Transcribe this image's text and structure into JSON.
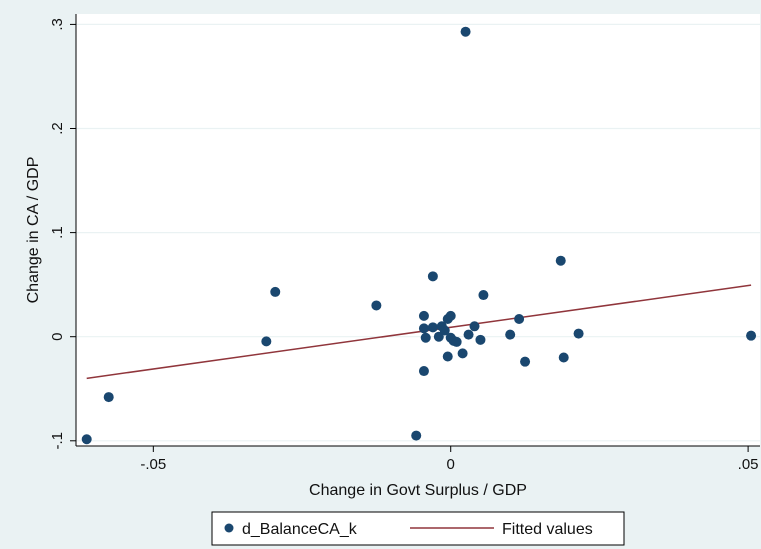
{
  "chart_data": {
    "type": "scatter",
    "xlabel": "Change in Govt Surplus / GDP",
    "ylabel": "Change in CA / GDP",
    "xlim": [
      -0.063,
      0.052
    ],
    "ylim": [
      -0.105,
      0.31
    ],
    "x_ticks": [
      {
        "value": -0.05,
        "label": "-.05"
      },
      {
        "value": 0,
        "label": "0"
      },
      {
        "value": 0.05,
        "label": ".05"
      }
    ],
    "y_ticks": [
      {
        "value": -0.1,
        "label": "-.1"
      },
      {
        "value": 0,
        "label": "0"
      },
      {
        "value": 0.1,
        "label": ".1"
      },
      {
        "value": 0.2,
        "label": ".2"
      },
      {
        "value": 0.3,
        "label": ".3"
      }
    ],
    "grid": true,
    "legend": "bottom",
    "series": [
      {
        "name": "d_BalanceCA_k",
        "type": "scatter",
        "color": "#1a476f",
        "points": [
          {
            "x": -0.0612,
            "y": -0.0985
          },
          {
            "x": -0.0575,
            "y": -0.058
          },
          {
            "x": -0.031,
            "y": -0.0045
          },
          {
            "x": -0.0295,
            "y": 0.043
          },
          {
            "x": -0.0125,
            "y": 0.03
          },
          {
            "x": -0.0058,
            "y": -0.095
          },
          {
            "x": -0.0045,
            "y": -0.033
          },
          {
            "x": -0.0045,
            "y": 0.02
          },
          {
            "x": -0.0045,
            "y": 0.008
          },
          {
            "x": -0.0042,
            "y": -0.001
          },
          {
            "x": -0.003,
            "y": 0.009
          },
          {
            "x": -0.003,
            "y": 0.058
          },
          {
            "x": -0.002,
            "y": 0.0
          },
          {
            "x": -0.0015,
            "y": 0.01
          },
          {
            "x": -0.001,
            "y": 0.006
          },
          {
            "x": -0.0005,
            "y": -0.019
          },
          {
            "x": -0.0005,
            "y": 0.017
          },
          {
            "x": 0.0,
            "y": 0.02
          },
          {
            "x": 0.0,
            "y": -0.001
          },
          {
            "x": 0.0005,
            "y": -0.004
          },
          {
            "x": 0.001,
            "y": -0.005
          },
          {
            "x": 0.002,
            "y": -0.016
          },
          {
            "x": 0.0025,
            "y": 0.293
          },
          {
            "x": 0.003,
            "y": 0.002
          },
          {
            "x": 0.004,
            "y": 0.01
          },
          {
            "x": 0.005,
            "y": -0.003
          },
          {
            "x": 0.0055,
            "y": 0.04
          },
          {
            "x": 0.01,
            "y": 0.002
          },
          {
            "x": 0.0115,
            "y": 0.017
          },
          {
            "x": 0.0125,
            "y": -0.024
          },
          {
            "x": 0.0185,
            "y": 0.073
          },
          {
            "x": 0.019,
            "y": -0.02
          },
          {
            "x": 0.0215,
            "y": 0.003
          },
          {
            "x": 0.0505,
            "y": 0.001
          }
        ]
      },
      {
        "name": "Fitted values",
        "type": "line",
        "color": "#90353b",
        "points": [
          {
            "x": -0.0612,
            "y": -0.04
          },
          {
            "x": 0.0505,
            "y": 0.0495
          }
        ]
      }
    ]
  }
}
